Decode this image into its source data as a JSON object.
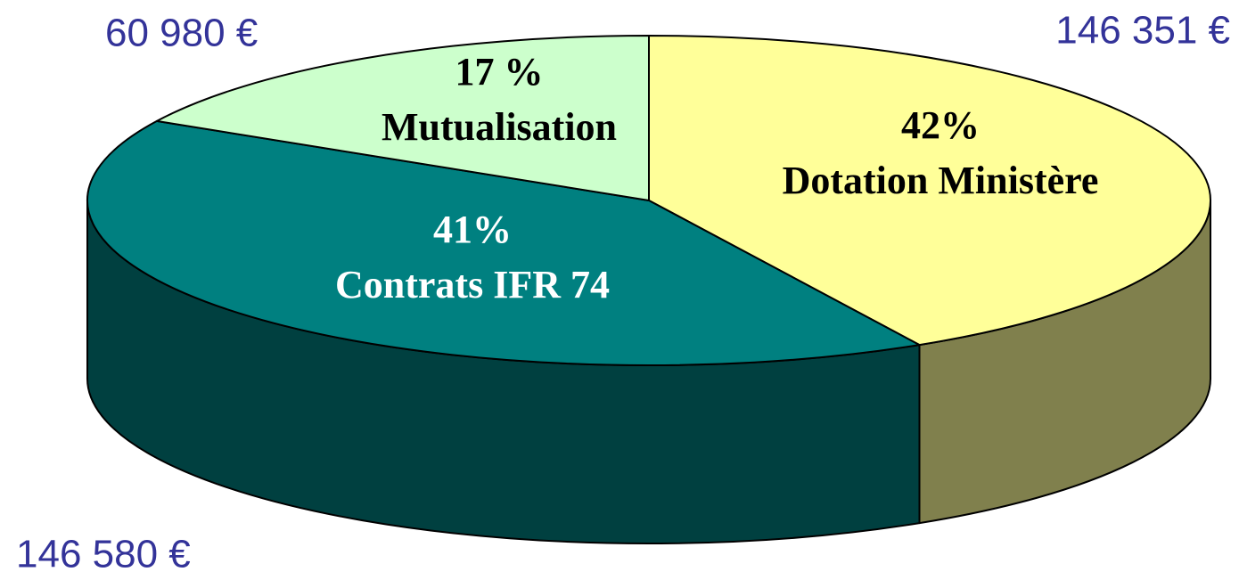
{
  "chart_data": {
    "type": "pie",
    "categories": [
      "Dotation Ministère",
      "Contrats IFR 74",
      "Mutualisation"
    ],
    "values": [
      42,
      41,
      17
    ],
    "value_labels": [
      "42%",
      "41%",
      "17 %"
    ],
    "colors": [
      "#ffff99",
      "#008080",
      "#ccffcc"
    ],
    "annotations": [
      "146 351 €",
      "146 580 €",
      "60 980 €"
    ]
  }
}
